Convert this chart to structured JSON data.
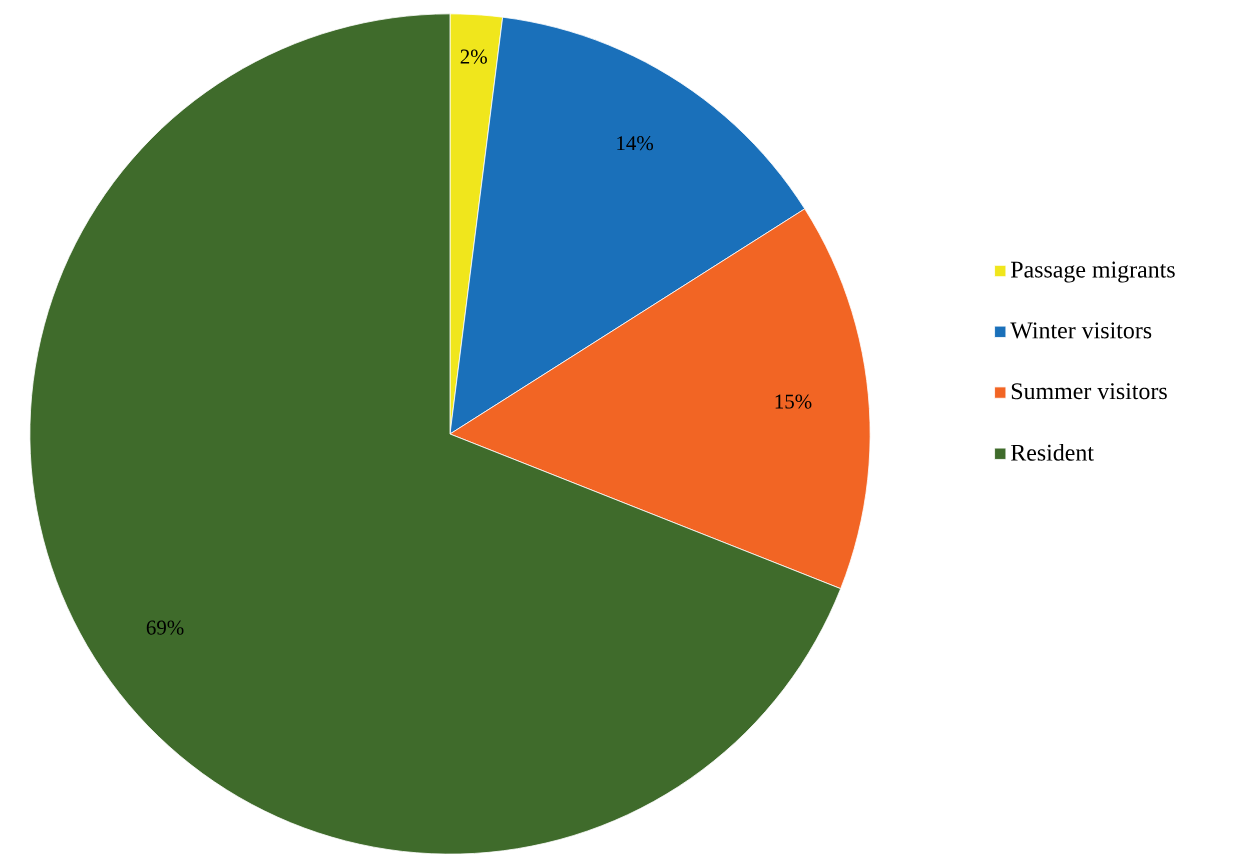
{
  "chart_data": {
    "type": "pie",
    "categories": [
      "Passage migrants",
      "Winter visitors",
      "Summer visitors",
      "Resident"
    ],
    "values": [
      2,
      14,
      15,
      69
    ],
    "colors": [
      "#f0e61c",
      "#1a70ba",
      "#f26524",
      "#3f6b2b"
    ],
    "value_labels": [
      "2%",
      "14%",
      "15%",
      "69%"
    ],
    "legend": "right"
  }
}
